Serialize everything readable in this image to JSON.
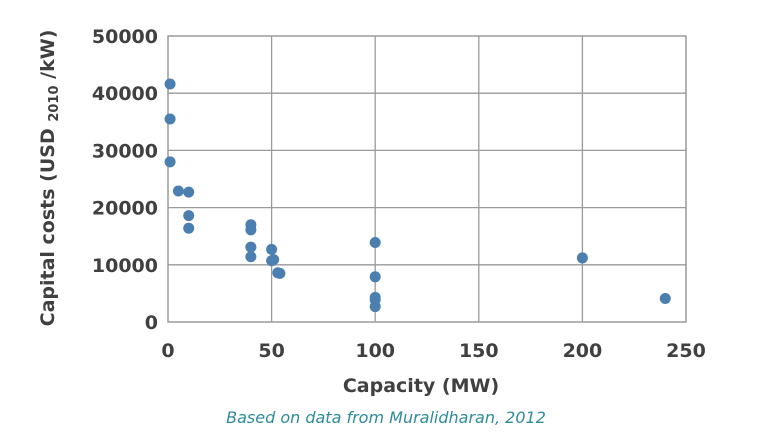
{
  "chart_data": {
    "type": "scatter",
    "title": "",
    "xlabel": "Capacity (MW)",
    "ylabel": {
      "prefix": "Capital costs (USD",
      "subscript": "2010",
      "suffix": "/kW)"
    },
    "xlim": [
      0,
      250
    ],
    "ylim": [
      0,
      50000
    ],
    "xticks": [
      0,
      50,
      100,
      150,
      200,
      250
    ],
    "yticks": [
      0,
      10000,
      20000,
      30000,
      40000,
      50000
    ],
    "grid": true,
    "marker_color": "#4a7fb0",
    "series": [
      {
        "name": "Capital costs",
        "points": [
          {
            "x": 1,
            "y": 41600
          },
          {
            "x": 1,
            "y": 35500
          },
          {
            "x": 1,
            "y": 28000
          },
          {
            "x": 5,
            "y": 22900
          },
          {
            "x": 10,
            "y": 22700
          },
          {
            "x": 10,
            "y": 18600
          },
          {
            "x": 10,
            "y": 16400
          },
          {
            "x": 40,
            "y": 17000
          },
          {
            "x": 40,
            "y": 16100
          },
          {
            "x": 40,
            "y": 13100
          },
          {
            "x": 40,
            "y": 11400
          },
          {
            "x": 50,
            "y": 12700
          },
          {
            "x": 50,
            "y": 10700
          },
          {
            "x": 51,
            "y": 10900
          },
          {
            "x": 53,
            "y": 8600
          },
          {
            "x": 54,
            "y": 8500
          },
          {
            "x": 100,
            "y": 13900
          },
          {
            "x": 100,
            "y": 7900
          },
          {
            "x": 100,
            "y": 4300
          },
          {
            "x": 100,
            "y": 3900
          },
          {
            "x": 100,
            "y": 2700
          },
          {
            "x": 200,
            "y": 11200
          },
          {
            "x": 240,
            "y": 4100
          }
        ]
      }
    ]
  },
  "caption": "Based on data from Muralidharan, 2012"
}
